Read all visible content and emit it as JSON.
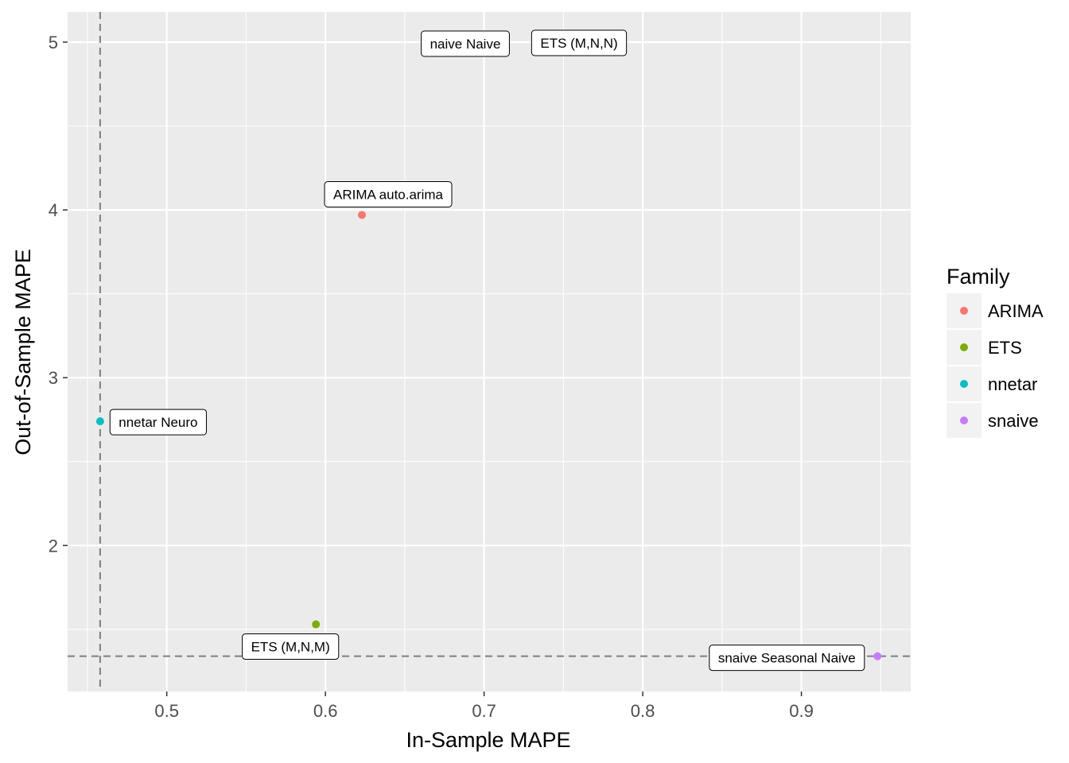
{
  "chart_data": {
    "type": "scatter",
    "title": "",
    "xlabel": "In-Sample MAPE",
    "ylabel": "Out-of-Sample MAPE",
    "xlim": [
      0.4375,
      0.9689
    ],
    "ylim": [
      1.13,
      5.18
    ],
    "x_ticks": [
      0.5,
      0.6,
      0.7,
      0.8,
      0.9
    ],
    "x_tick_labels": [
      "0.5",
      "0.6",
      "0.7",
      "0.8",
      "0.9"
    ],
    "y_ticks": [
      2,
      3,
      4,
      5
    ],
    "y_tick_labels": [
      "2",
      "3",
      "4",
      "5"
    ],
    "grid": true,
    "background": "#ebebeb",
    "legend": {
      "title": "Family",
      "position": "right",
      "entries": [
        {
          "label": "ARIMA",
          "color": "#F8766D"
        },
        {
          "label": "ETS",
          "color": "#7CAE00"
        },
        {
          "label": "nnetar",
          "color": "#00BFC4"
        },
        {
          "label": "snaive",
          "color": "#C77CFF"
        }
      ]
    },
    "reference_lines": [
      {
        "orientation": "vertical",
        "x": 0.458,
        "style": "dashed",
        "color": "#7f7f7f"
      },
      {
        "orientation": "horizontal",
        "y": 1.34,
        "style": "dashed",
        "color": "#7f7f7f"
      }
    ],
    "points": [
      {
        "label": "ARIMA auto.arima",
        "family": "ARIMA",
        "x": 0.623,
        "y": 3.97,
        "shown": true
      },
      {
        "label": "ETS (M,N,M)",
        "family": "ETS",
        "x": 0.594,
        "y": 1.53,
        "shown": true
      },
      {
        "label": "nnetar Neuro",
        "family": "nnetar",
        "x": 0.458,
        "y": 2.74,
        "shown": true
      },
      {
        "label": "snaive Seasonal Naive",
        "family": "snaive",
        "x": 0.948,
        "y": 1.34,
        "shown": true
      },
      {
        "label": "naive Naive",
        "family": "naive",
        "x": 0.681,
        "y": 5.0,
        "shown": false
      },
      {
        "label": "ETS (M,N,N)",
        "family": "ETS",
        "x": 0.75,
        "y": 5.0,
        "shown": false
      }
    ]
  }
}
